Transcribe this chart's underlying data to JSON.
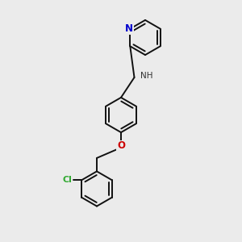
{
  "bg_color": "#ebebeb",
  "lw": 1.4,
  "bond_color": "#111111",
  "N_color": "#0000cc",
  "O_color": "#cc0000",
  "Cl_color": "#33aa33",
  "NH_color": "#333333",
  "ring_r": 0.072,
  "xlim": [
    0.0,
    1.0
  ],
  "ylim": [
    0.0,
    1.0
  ]
}
